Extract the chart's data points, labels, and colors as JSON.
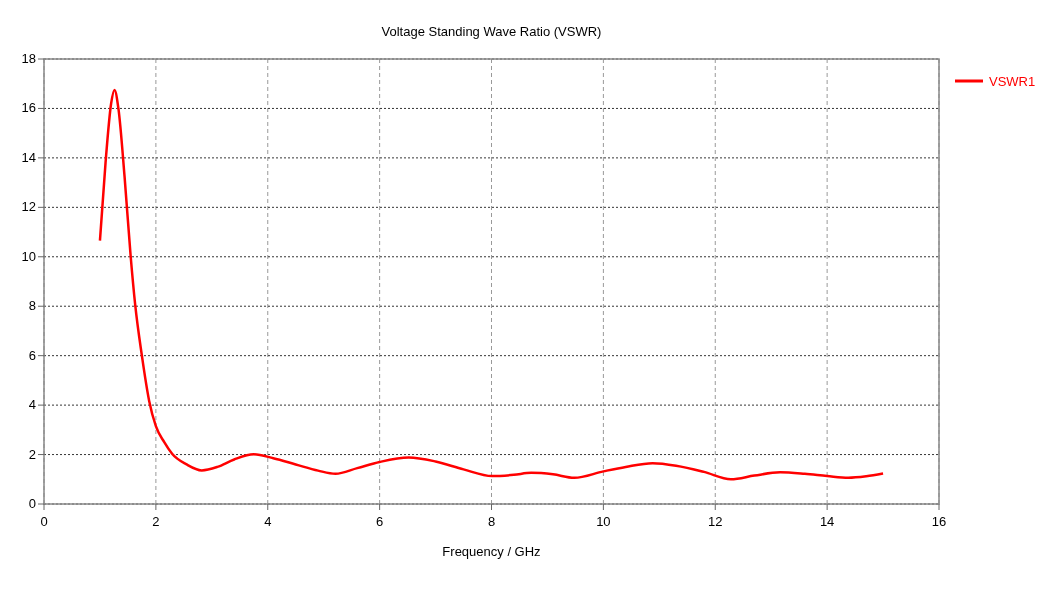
{
  "chart_data": {
    "type": "line",
    "title": "Voltage Standing Wave Ratio (VSWR)",
    "xlabel": "Frequency / GHz",
    "series": [
      {
        "name": "VSWR1",
        "color": "#ff0000",
        "x": [
          1.0,
          1.1,
          1.2,
          1.26,
          1.33,
          1.44,
          1.55,
          1.63,
          1.75,
          1.88,
          2.0,
          2.15,
          2.29,
          2.55,
          2.82,
          3.1,
          3.4,
          3.75,
          4.1,
          4.5,
          4.9,
          5.21,
          5.6,
          6.0,
          6.52,
          7.0,
          7.5,
          8.01,
          8.4,
          8.71,
          9.1,
          9.48,
          10.0,
          10.4,
          10.88,
          11.3,
          11.8,
          12.28,
          12.7,
          13.16,
          13.6,
          14.0,
          14.38,
          14.7,
          15.0
        ],
        "values": [
          10.65,
          13.8,
          16.2,
          16.75,
          16.0,
          13.25,
          10.0,
          8.06,
          6.0,
          4.17,
          3.15,
          2.5,
          2.03,
          1.6,
          1.36,
          1.5,
          1.8,
          2.01,
          1.85,
          1.6,
          1.35,
          1.22,
          1.45,
          1.7,
          1.88,
          1.72,
          1.4,
          1.13,
          1.18,
          1.26,
          1.2,
          1.06,
          1.32,
          1.5,
          1.65,
          1.55,
          1.3,
          1.0,
          1.15,
          1.28,
          1.22,
          1.13,
          1.06,
          1.12,
          1.23
        ]
      }
    ],
    "xlim": [
      0,
      16
    ],
    "xticks": [
      0,
      2,
      4,
      6,
      8,
      10,
      12,
      14,
      16
    ],
    "ylim": [
      0,
      18
    ],
    "yticks": [
      0,
      2,
      4,
      6,
      8,
      10,
      12,
      14,
      16,
      18
    ],
    "grid": true,
    "legend": "top right",
    "line_style": "solid",
    "marker": "none"
  }
}
